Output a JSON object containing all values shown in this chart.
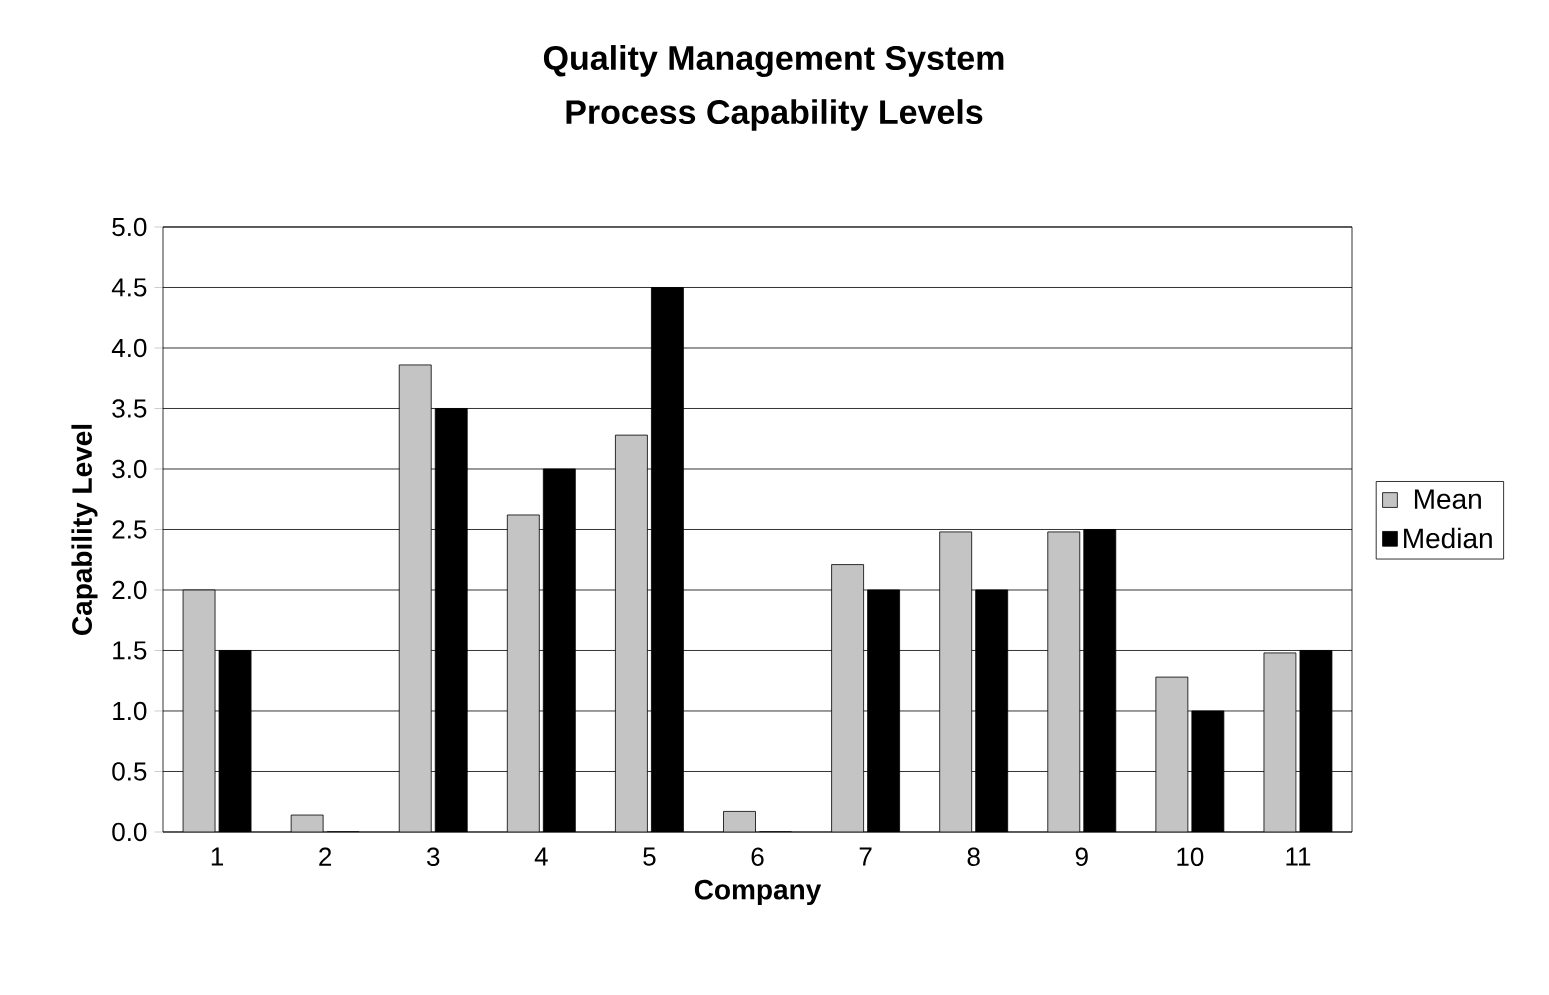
{
  "chart_data": {
    "type": "bar",
    "title": "Quality Management System",
    "subtitle": "Process Capability Levels",
    "xlabel": "Company",
    "ylabel": "Capability Level",
    "categories": [
      "1",
      "2",
      "3",
      "4",
      "5",
      "6",
      "7",
      "8",
      "9",
      "10",
      "11"
    ],
    "series": [
      {
        "name": "Mean",
        "color": "#c4c4c4",
        "values": [
          2.0,
          0.14,
          3.86,
          2.62,
          3.28,
          0.17,
          2.21,
          2.48,
          2.48,
          1.28,
          1.48
        ]
      },
      {
        "name": "Median",
        "color": "#000000",
        "values": [
          1.5,
          0,
          3.5,
          3.0,
          4.5,
          0,
          2.0,
          2.0,
          2.5,
          1.0,
          1.5
        ]
      }
    ],
    "ylim": [
      0,
      5
    ],
    "yticks": [
      {
        "value": 0,
        "label": "0.0"
      },
      {
        "value": 0.5,
        "label": "0.5"
      },
      {
        "value": 1,
        "label": "1.0"
      },
      {
        "value": 1.5,
        "label": "1.5"
      },
      {
        "value": 2,
        "label": "2.0"
      },
      {
        "value": 2.5,
        "label": "2.5"
      },
      {
        "value": 3,
        "label": "3.0"
      },
      {
        "value": 3.5,
        "label": "3.5"
      },
      {
        "value": 4,
        "label": "4.0"
      },
      {
        "value": 4.5,
        "label": "4.5"
      },
      {
        "value": 5,
        "label": "5.0"
      }
    ],
    "grid": "y",
    "legend": "right"
  }
}
